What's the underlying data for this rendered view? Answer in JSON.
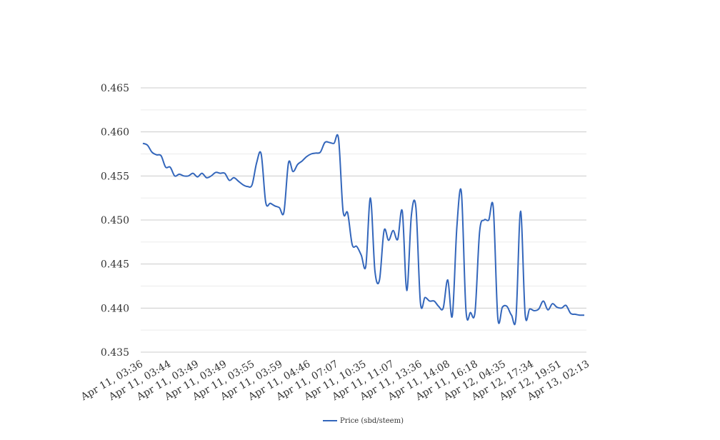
{
  "chart_data": {
    "type": "line",
    "title": "",
    "xlabel": "",
    "ylabel": "",
    "ylim": [
      0.435,
      0.465
    ],
    "y_ticks": [
      "0.435",
      "0.440",
      "0.445",
      "0.450",
      "0.455",
      "0.460",
      "0.465"
    ],
    "minor_grid": true,
    "legend_position": "bottom-center",
    "x_tick_labels": [
      "Apr 11, 03:36",
      "Apr 11, 03:44",
      "Apr 11, 03:49",
      "Apr 11, 03:49",
      "Apr 11, 03:55",
      "Apr 11, 03:59",
      "Apr 11, 04:46",
      "Apr 11, 07:07",
      "Apr 11, 10:35",
      "Apr 11, 11:07",
      "Apr 11, 13:36",
      "Apr 11, 14:08",
      "Apr 11, 16:18",
      "Apr 12, 04:35",
      "Apr 12, 17:34",
      "Apr 12, 19:51",
      "Apr 13, 02:13"
    ],
    "series": [
      {
        "name": "Price (sbd/steem)",
        "color": "#3366bb",
        "values": [
          0.4587,
          0.4585,
          0.4577,
          0.4574,
          0.4573,
          0.456,
          0.456,
          0.455,
          0.4552,
          0.455,
          0.455,
          0.4553,
          0.4549,
          0.4553,
          0.4548,
          0.455,
          0.4554,
          0.4553,
          0.4553,
          0.4545,
          0.4548,
          0.4544,
          0.454,
          0.4538,
          0.454,
          0.4565,
          0.4575,
          0.452,
          0.4519,
          0.4516,
          0.4514,
          0.4509,
          0.4565,
          0.4555,
          0.4563,
          0.4567,
          0.4572,
          0.4575,
          0.4576,
          0.4577,
          0.4588,
          0.4588,
          0.4587,
          0.4592,
          0.451,
          0.4508,
          0.4472,
          0.447,
          0.446,
          0.4448,
          0.4525,
          0.4442,
          0.4432,
          0.4488,
          0.4477,
          0.4488,
          0.4478,
          0.451,
          0.442,
          0.4505,
          0.4514,
          0.4406,
          0.4412,
          0.4408,
          0.4408,
          0.4402,
          0.44,
          0.4432,
          0.4391,
          0.4492,
          0.4531,
          0.4397,
          0.4395,
          0.4396,
          0.4487,
          0.45,
          0.45,
          0.4514,
          0.4389,
          0.4401,
          0.4402,
          0.4392,
          0.439,
          0.451,
          0.4393,
          0.4399,
          0.4397,
          0.4399,
          0.4408,
          0.4398,
          0.4405,
          0.4401,
          0.44,
          0.4403,
          0.4394,
          0.4393,
          0.4392,
          0.4392
        ]
      }
    ]
  }
}
